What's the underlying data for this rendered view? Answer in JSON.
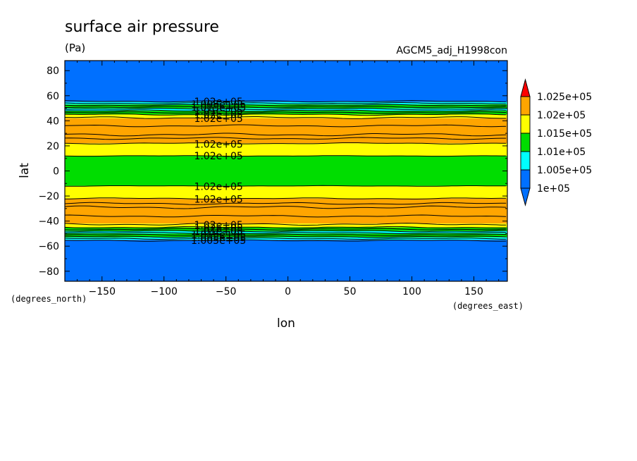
{
  "chart_data": {
    "type": "heatmap",
    "title": "surface air pressure",
    "units": "(Pa)",
    "dataset": "AGCM5_adj_H1998con",
    "xlabel": "lon",
    "ylabel": "lat",
    "x_units": "(degrees_east)",
    "y_units": "(degrees_north)",
    "xlim": [
      -180,
      177
    ],
    "ylim": [
      -88,
      88
    ],
    "x_ticks": [
      -150,
      -100,
      -50,
      0,
      50,
      100,
      150
    ],
    "x_tick_labels": [
      "−150",
      "−100",
      "−50",
      "0",
      "50",
      "100",
      "150"
    ],
    "y_ticks": [
      80,
      60,
      40,
      20,
      0,
      -20,
      -40,
      -60,
      -80
    ],
    "y_tick_labels": [
      "80",
      "60",
      "40",
      "20",
      "0",
      "−20",
      "−40",
      "−60",
      "−80"
    ],
    "legend": {
      "placement": "right",
      "levels": [
        {
          "label": "1.025e+05",
          "value": 102500,
          "color": "#ff0000"
        },
        {
          "label": "1.02e+05",
          "value": 102000,
          "color": "#ffa500"
        },
        {
          "label": "1.015e+05",
          "value": 101500,
          "color": "#ffff00"
        },
        {
          "label": "1.01e+05",
          "value": 101000,
          "color": "#00dd00"
        },
        {
          "label": "1.005e+05",
          "value": 100500,
          "color": "#00ffff"
        },
        {
          "label": "1e+05",
          "value": 100000,
          "color": "#0070ff"
        }
      ]
    },
    "bands": [
      {
        "lat_min": 55,
        "lat_max": 88,
        "color": "#0070ff"
      },
      {
        "lat_min": 53,
        "lat_max": 55,
        "color": "#00ffff"
      },
      {
        "lat_min": 50,
        "lat_max": 53,
        "color": "#00dd00"
      },
      {
        "lat_min": 48,
        "lat_max": 50,
        "color": "#00ffff"
      },
      {
        "lat_min": 45,
        "lat_max": 48,
        "color": "#00dd00"
      },
      {
        "lat_min": 42,
        "lat_max": 45,
        "color": "#ffff00"
      },
      {
        "lat_min": 22,
        "lat_max": 42,
        "color": "#ffa500"
      },
      {
        "lat_min": 12,
        "lat_max": 22,
        "color": "#ffff00"
      },
      {
        "lat_min": -12,
        "lat_max": 12,
        "color": "#00dd00"
      },
      {
        "lat_min": -22,
        "lat_max": -12,
        "color": "#ffff00"
      },
      {
        "lat_min": -42,
        "lat_max": -22,
        "color": "#ffa500"
      },
      {
        "lat_min": -45,
        "lat_max": -42,
        "color": "#ffff00"
      },
      {
        "lat_min": -48,
        "lat_max": -45,
        "color": "#00dd00"
      },
      {
        "lat_min": -50,
        "lat_max": -48,
        "color": "#00ffff"
      },
      {
        "lat_min": -53,
        "lat_max": -50,
        "color": "#00dd00"
      },
      {
        "lat_min": -55,
        "lat_max": -53,
        "color": "#00ffff"
      },
      {
        "lat_min": -88,
        "lat_max": -55,
        "color": "#0070ff"
      }
    ],
    "contour_lines": [
      {
        "lat": 55.5,
        "amp": 1.0
      },
      {
        "lat": 54.0,
        "amp": 1.0
      },
      {
        "lat": 52.5,
        "amp": 1.0
      },
      {
        "lat": 51.0,
        "amp": 1.0
      },
      {
        "lat": 49.5,
        "amp": 1.0
      },
      {
        "lat": 48.0,
        "amp": 1.2
      },
      {
        "lat": 46.5,
        "amp": 1.2
      },
      {
        "lat": 45.0,
        "amp": 1.2
      },
      {
        "lat": 42.5,
        "amp": 1.5
      },
      {
        "lat": 36.0,
        "amp": 1.5
      },
      {
        "lat": 29.0,
        "amp": 2.0
      },
      {
        "lat": 26.0,
        "amp": 1.5
      },
      {
        "lat": 22.0,
        "amp": 1.0
      },
      {
        "lat": 12.0,
        "amp": 0.5
      },
      {
        "lat": -12.0,
        "amp": 0.5
      },
      {
        "lat": -22.0,
        "amp": 1.0
      },
      {
        "lat": -26.0,
        "amp": 1.5
      },
      {
        "lat": -29.0,
        "amp": 2.0
      },
      {
        "lat": -36.0,
        "amp": 1.5
      },
      {
        "lat": -42.5,
        "amp": 1.5
      },
      {
        "lat": -45.0,
        "amp": 1.2
      },
      {
        "lat": -46.5,
        "amp": 1.2
      },
      {
        "lat": -48.0,
        "amp": 1.2
      },
      {
        "lat": -49.5,
        "amp": 1.0
      },
      {
        "lat": -51.0,
        "amp": 1.0
      },
      {
        "lat": -52.5,
        "amp": 1.0
      },
      {
        "lat": -54.0,
        "amp": 1.0
      },
      {
        "lat": -55.5,
        "amp": 1.0
      }
    ],
    "contour_labels": [
      {
        "text": "1.02e+05",
        "lon": -56,
        "lat": 55.5
      },
      {
        "text": "1.005e+05",
        "lon": -56,
        "lat": 53.0
      },
      {
        "text": "1.015e+05",
        "lon": -56,
        "lat": 50.5
      },
      {
        "text": "1.01e+05",
        "lon": -56,
        "lat": 48.0
      },
      {
        "text": "1.02e+05",
        "lon": -56,
        "lat": 45.0
      },
      {
        "text": "1.02e+05",
        "lon": -56,
        "lat": 42.0
      },
      {
        "text": "1.02e+05",
        "lon": -56,
        "lat": 21.5
      },
      {
        "text": "1.02e+05",
        "lon": -56,
        "lat": 12.0
      },
      {
        "text": "1.02e+05",
        "lon": -56,
        "lat": -12.5
      },
      {
        "text": "1.02e+05",
        "lon": -56,
        "lat": -22.5
      },
      {
        "text": "1.02e+05",
        "lon": -56,
        "lat": -43.0
      },
      {
        "text": "1.02e+05",
        "lon": -56,
        "lat": -45.5
      },
      {
        "text": "1.01e+05",
        "lon": -56,
        "lat": -48.0
      },
      {
        "text": "1.015e+05",
        "lon": -56,
        "lat": -50.5
      },
      {
        "text": "1.005e+05",
        "lon": -56,
        "lat": -53.0
      },
      {
        "text": "1.005e+05",
        "lon": -56,
        "lat": -55.5
      }
    ]
  }
}
